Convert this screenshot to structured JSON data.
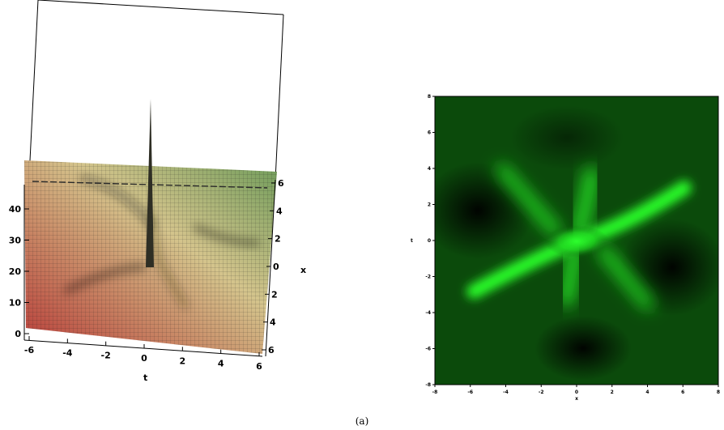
{
  "chart_data": [
    {
      "type": "surface",
      "view": "3d",
      "xlabel": "t",
      "ylabel": "x",
      "zlabel": "",
      "xlim": [
        -6,
        6
      ],
      "ylim": [
        -6,
        6
      ],
      "zlim": [
        0,
        48
      ],
      "x_ticks": [
        "-6",
        "-4",
        "-2",
        "0",
        "2",
        "4",
        "6"
      ],
      "y_ticks": [
        "6",
        "4",
        "2",
        "0",
        "2",
        "4",
        "6"
      ],
      "z_ticks": [
        "0",
        "10",
        "20",
        "30",
        "40"
      ],
      "colors": {
        "low": "#b83a38",
        "mid": "#d8c486",
        "high": "#6f9c5a",
        "mesh": "#1a1a1a"
      },
      "peak": {
        "t": 0,
        "x": 0,
        "z": 48
      }
    },
    {
      "type": "heatmap",
      "xlabel": "x",
      "ylabel": "t",
      "xlim": [
        -8,
        8
      ],
      "ylim": [
        -8,
        8
      ],
      "x_ticks": [
        "-8",
        "-6",
        "-4",
        "-2",
        "0",
        "2",
        "4",
        "6",
        "8"
      ],
      "y_ticks": [
        "8",
        "6",
        "4",
        "2",
        "0",
        "-2",
        "-4",
        "-6",
        "-8"
      ],
      "colors": {
        "low": "#000000",
        "high": "#2dff2d",
        "base": "#0b4a0b"
      }
    }
  ],
  "caption": "(a)"
}
